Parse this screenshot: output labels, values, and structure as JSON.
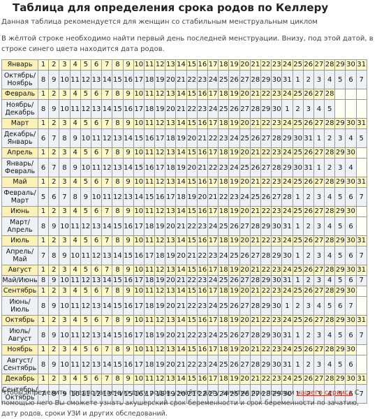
{
  "header": {
    "title": "Таблица для определения срока родов по Келлеру",
    "subtitle": "Данная таблица рекомендуется для женщин со стабильным менструальным циклом",
    "intro": "В жёлтой строке необходимо найти первый день последней менструации. Внизу, под этой датой, в строке синего цвета находится дата родов."
  },
  "table": {
    "pairs": [
      {
        "month": "Январь",
        "last_day": 31,
        "due_label": "Октябрь/ Ноябрь",
        "due": [
          8,
          9,
          10,
          11,
          12,
          13,
          14,
          15,
          16,
          17,
          18,
          19,
          20,
          21,
          22,
          23,
          24,
          25,
          26,
          27,
          28,
          29,
          30,
          31,
          1,
          2,
          3,
          4,
          5,
          6,
          7
        ]
      },
      {
        "month": "Февраль",
        "last_day": 28,
        "due_label": "Ноябрь/ Декабрь",
        "due": [
          8,
          9,
          10,
          11,
          12,
          13,
          14,
          15,
          16,
          17,
          18,
          19,
          20,
          21,
          22,
          23,
          24,
          25,
          26,
          27,
          28,
          29,
          30,
          1,
          2,
          3,
          4,
          5
        ]
      },
      {
        "month": "Март",
        "last_day": 31,
        "due_label": "Декабрь/ Январь",
        "due": [
          6,
          7,
          8,
          9,
          10,
          11,
          12,
          13,
          14,
          15,
          16,
          17,
          18,
          19,
          20,
          21,
          22,
          23,
          24,
          25,
          26,
          27,
          28,
          29,
          30,
          31,
          1,
          2,
          3,
          4,
          5
        ]
      },
      {
        "month": "Апрель",
        "last_day": 30,
        "due_label": "Январь/ Февраль",
        "due": [
          6,
          7,
          8,
          9,
          10,
          11,
          12,
          13,
          14,
          15,
          16,
          17,
          18,
          19,
          20,
          21,
          22,
          23,
          24,
          25,
          26,
          27,
          28,
          29,
          30,
          31,
          1,
          2,
          3,
          4
        ]
      },
      {
        "month": "Май",
        "last_day": 31,
        "due_label": "Февраль/ Март",
        "due": [
          5,
          6,
          7,
          8,
          9,
          10,
          11,
          12,
          13,
          14,
          15,
          16,
          17,
          18,
          19,
          20,
          21,
          22,
          23,
          24,
          25,
          26,
          27,
          28,
          1,
          2,
          3,
          4,
          5,
          6,
          7
        ]
      },
      {
        "month": "Июнь",
        "last_day": 30,
        "due_label": "Март/ Апрель",
        "due": [
          8,
          9,
          10,
          11,
          12,
          13,
          14,
          15,
          16,
          17,
          18,
          19,
          20,
          21,
          22,
          23,
          24,
          25,
          26,
          27,
          28,
          29,
          30,
          31,
          1,
          2,
          3,
          4,
          5,
          6
        ]
      },
      {
        "month": "Июль",
        "last_day": 31,
        "due_label": "Апрель/ Май",
        "due": [
          7,
          8,
          9,
          10,
          11,
          12,
          13,
          14,
          15,
          16,
          17,
          18,
          19,
          20,
          21,
          22,
          23,
          24,
          25,
          26,
          27,
          28,
          29,
          30,
          1,
          2,
          3,
          4,
          5,
          6,
          7
        ]
      },
      {
        "month": "Август",
        "last_day": 31,
        "due_label": "Май/Июнь",
        "due": [
          8,
          9,
          10,
          11,
          12,
          13,
          14,
          15,
          16,
          17,
          18,
          19,
          20,
          21,
          22,
          23,
          24,
          25,
          26,
          27,
          28,
          29,
          30,
          31,
          1,
          2,
          3,
          4,
          5,
          6,
          7
        ]
      },
      {
        "month": "Сентябрь",
        "last_day": 30,
        "due_label": "Июнь/ Июль",
        "due": [
          8,
          9,
          10,
          11,
          12,
          13,
          14,
          15,
          16,
          17,
          18,
          19,
          20,
          21,
          22,
          23,
          24,
          25,
          26,
          27,
          28,
          29,
          30,
          1,
          2,
          3,
          4,
          5,
          6,
          7
        ]
      },
      {
        "month": "Октябрь",
        "last_day": 31,
        "due_label": "Июль/ Август",
        "due": [
          8,
          9,
          10,
          11,
          12,
          13,
          14,
          15,
          16,
          17,
          18,
          19,
          20,
          21,
          22,
          23,
          24,
          25,
          26,
          27,
          28,
          29,
          30,
          31,
          1,
          2,
          3,
          4,
          5,
          6,
          7
        ]
      },
      {
        "month": "Ноябрь",
        "last_day": 30,
        "due_label": "Август/ Сентябрь",
        "due": [
          8,
          9,
          10,
          11,
          12,
          13,
          14,
          15,
          16,
          17,
          18,
          19,
          20,
          21,
          22,
          23,
          24,
          25,
          26,
          27,
          28,
          29,
          30,
          31,
          1,
          2,
          3,
          4,
          5,
          6
        ]
      },
      {
        "month": "Декабрь",
        "last_day": 31,
        "due_label": "Сентябрь/ Октябрь",
        "due": [
          7,
          8,
          9,
          10,
          11,
          12,
          13,
          14,
          15,
          16,
          17,
          18,
          19,
          20,
          21,
          22,
          23,
          24,
          25,
          26,
          27,
          28,
          29,
          30,
          1,
          2,
          3,
          4,
          5,
          6,
          7
        ]
      }
    ]
  },
  "footer": {
    "text_before": "Чтобы определить предполагаемую дату родов узнайте дату зачатия при помощи ",
    "link_text": "нашего сервиса",
    "text_after": " С помощью него Вы сможете узнать акушерский срок беременности и срок беременности по зачатию, дату родов, сроки УЗИ и других обследований."
  }
}
